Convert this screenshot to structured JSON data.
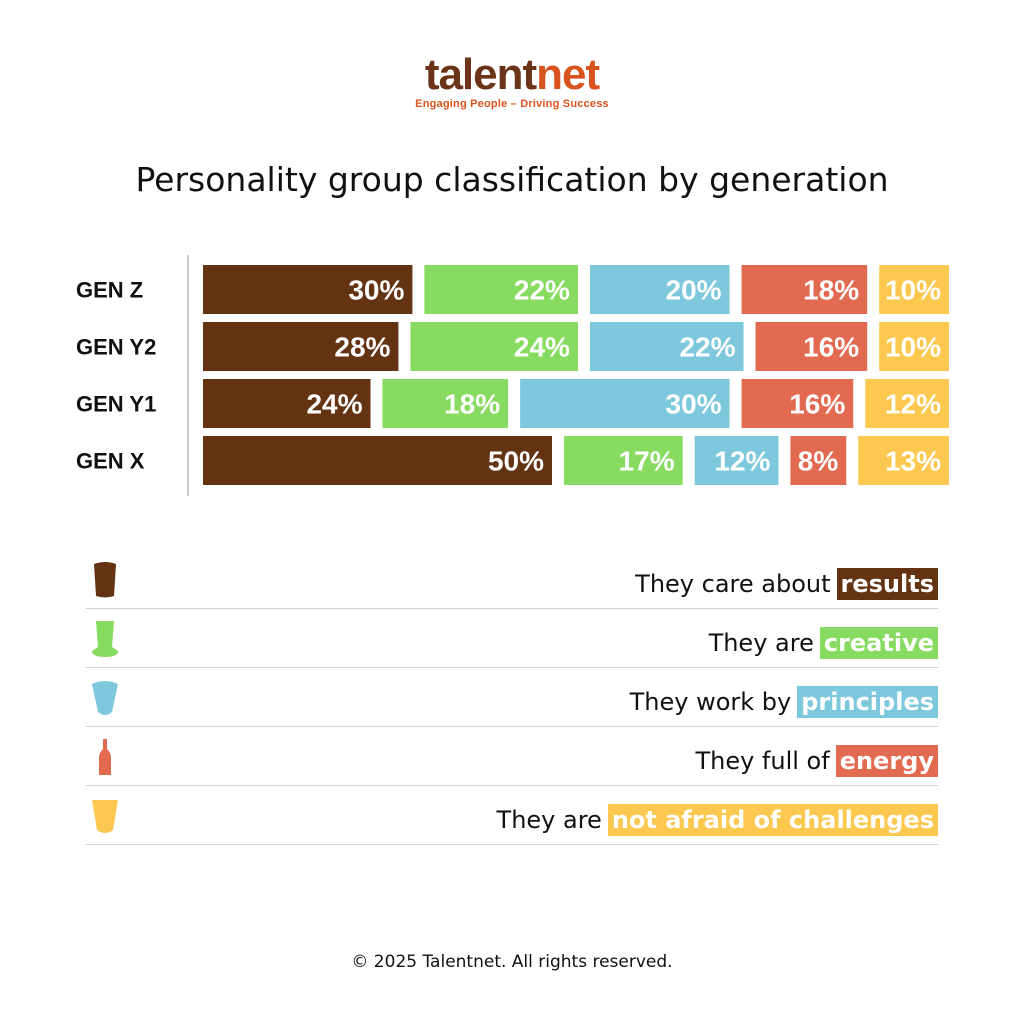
{
  "logo": {
    "part1": "talent",
    "part2": "net",
    "tagline": "Engaging People – Driving Success"
  },
  "colors": {
    "results": "#643312",
    "creative": "#86db60",
    "principles": "#7ec8de",
    "energy": "#e26a50",
    "challenges": "#fdc84f"
  },
  "chart_data": {
    "type": "bar",
    "stacked": true,
    "orientation": "horizontal",
    "title": "Personality group classification by generation",
    "categories": [
      "GEN Z",
      "GEN Y2",
      "GEN Y1",
      "GEN X"
    ],
    "series": [
      {
        "name": "results",
        "color": "#643312",
        "values": [
          30,
          28,
          24,
          50
        ]
      },
      {
        "name": "creative",
        "color": "#86db60",
        "values": [
          22,
          24,
          18,
          17
        ]
      },
      {
        "name": "principles",
        "color": "#7ec8de",
        "values": [
          20,
          22,
          30,
          12
        ]
      },
      {
        "name": "energy",
        "color": "#e26a50",
        "values": [
          18,
          16,
          16,
          8
        ]
      },
      {
        "name": "challenges",
        "color": "#fdc84f",
        "values": [
          10,
          10,
          12,
          13
        ]
      }
    ],
    "value_suffix": "%",
    "grid": false
  },
  "legend": [
    {
      "prefix": "They care about",
      "highlight": "results",
      "icon": "dark-cup-icon",
      "color": "#643312"
    },
    {
      "prefix": "They are",
      "highlight": "creative",
      "icon": "top-hat-cup-icon",
      "color": "#86db60"
    },
    {
      "prefix": "They work by",
      "highlight": "principles",
      "icon": "round-cup-icon",
      "color": "#7ec8de"
    },
    {
      "prefix": "They full of",
      "highlight": "energy",
      "icon": "bottle-icon",
      "color": "#e26a50"
    },
    {
      "prefix": "They are",
      "highlight": "not afraid of challenges",
      "icon": "plastic-cup-icon",
      "color": "#fdc84f"
    }
  ],
  "copyright": "© 2025 Talentnet. All rights reserved."
}
